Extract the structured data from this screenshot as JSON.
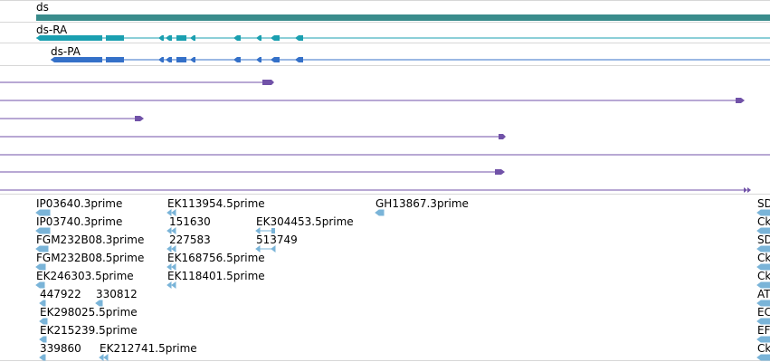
{
  "colors": {
    "gene": "#3a8c8c",
    "transcript": "#1a9fb0",
    "protein": "#3470c8",
    "match": "#7152a8",
    "est": "#7ab4d8",
    "divider": "#d7d7d7"
  },
  "gene_track": {
    "label": "ds"
  },
  "transcript_track": {
    "label": "ds-RA"
  },
  "protein_track": {
    "label": "ds-PA"
  },
  "est_labels": [
    {
      "text": "IP03640.3prime"
    },
    {
      "text": "IP03740.3prime"
    },
    {
      "text": "FGM232B08.3prime"
    },
    {
      "text": "FGM232B08.5prime"
    },
    {
      "text": "EK246303.5prime"
    },
    {
      "text": "447922"
    },
    {
      "text": "330812"
    },
    {
      "text": "EK298025.5prime"
    },
    {
      "text": "EK215239.5prime"
    },
    {
      "text": "339860"
    },
    {
      "text": "EK212741.5prime"
    },
    {
      "text": "EK113954.5prime"
    },
    {
      "text": "151630"
    },
    {
      "text": "EK304453.5prime"
    },
    {
      "text": "227583"
    },
    {
      "text": "513749"
    },
    {
      "text": "EK168756.5prime"
    },
    {
      "text": "EK118401.5prime"
    },
    {
      "text": "GH13867.3prime"
    },
    {
      "text": "SD"
    },
    {
      "text": "Ck"
    },
    {
      "text": "SD"
    },
    {
      "text": "Ck"
    },
    {
      "text": "Ck"
    },
    {
      "text": "AT"
    },
    {
      "text": "EC"
    },
    {
      "text": "EF"
    },
    {
      "text": "Ck"
    }
  ]
}
